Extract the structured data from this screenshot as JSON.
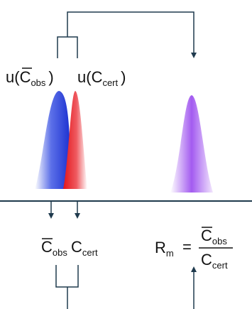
{
  "upper_labels": {
    "u_obs": {
      "prefix": "u(",
      "main": "C",
      "sub": "obs",
      "suffix": ")"
    },
    "u_cert": {
      "prefix": "u(",
      "main": "C",
      "sub": "cert",
      "suffix": ")"
    }
  },
  "lower_symbols": {
    "c_obs": {
      "main": "C",
      "sub": "obs"
    },
    "c_cert": {
      "main": "C",
      "sub": "cert"
    }
  },
  "ratio": {
    "lhs": {
      "main": "R",
      "sub": "m"
    },
    "equals": "=",
    "numerator": {
      "main": "C",
      "sub": "obs"
    },
    "denominator": {
      "main": "C",
      "sub": "cert"
    }
  },
  "colors": {
    "observed_peak": "#1f3bd6",
    "certified_peak": "#e8141c",
    "ratio_peak": "#8a33e6",
    "connector_lines": "#1f3a4d"
  },
  "icons": {
    "arrow": "arrow-down-icon",
    "arrow_up": "arrow-up-icon"
  }
}
